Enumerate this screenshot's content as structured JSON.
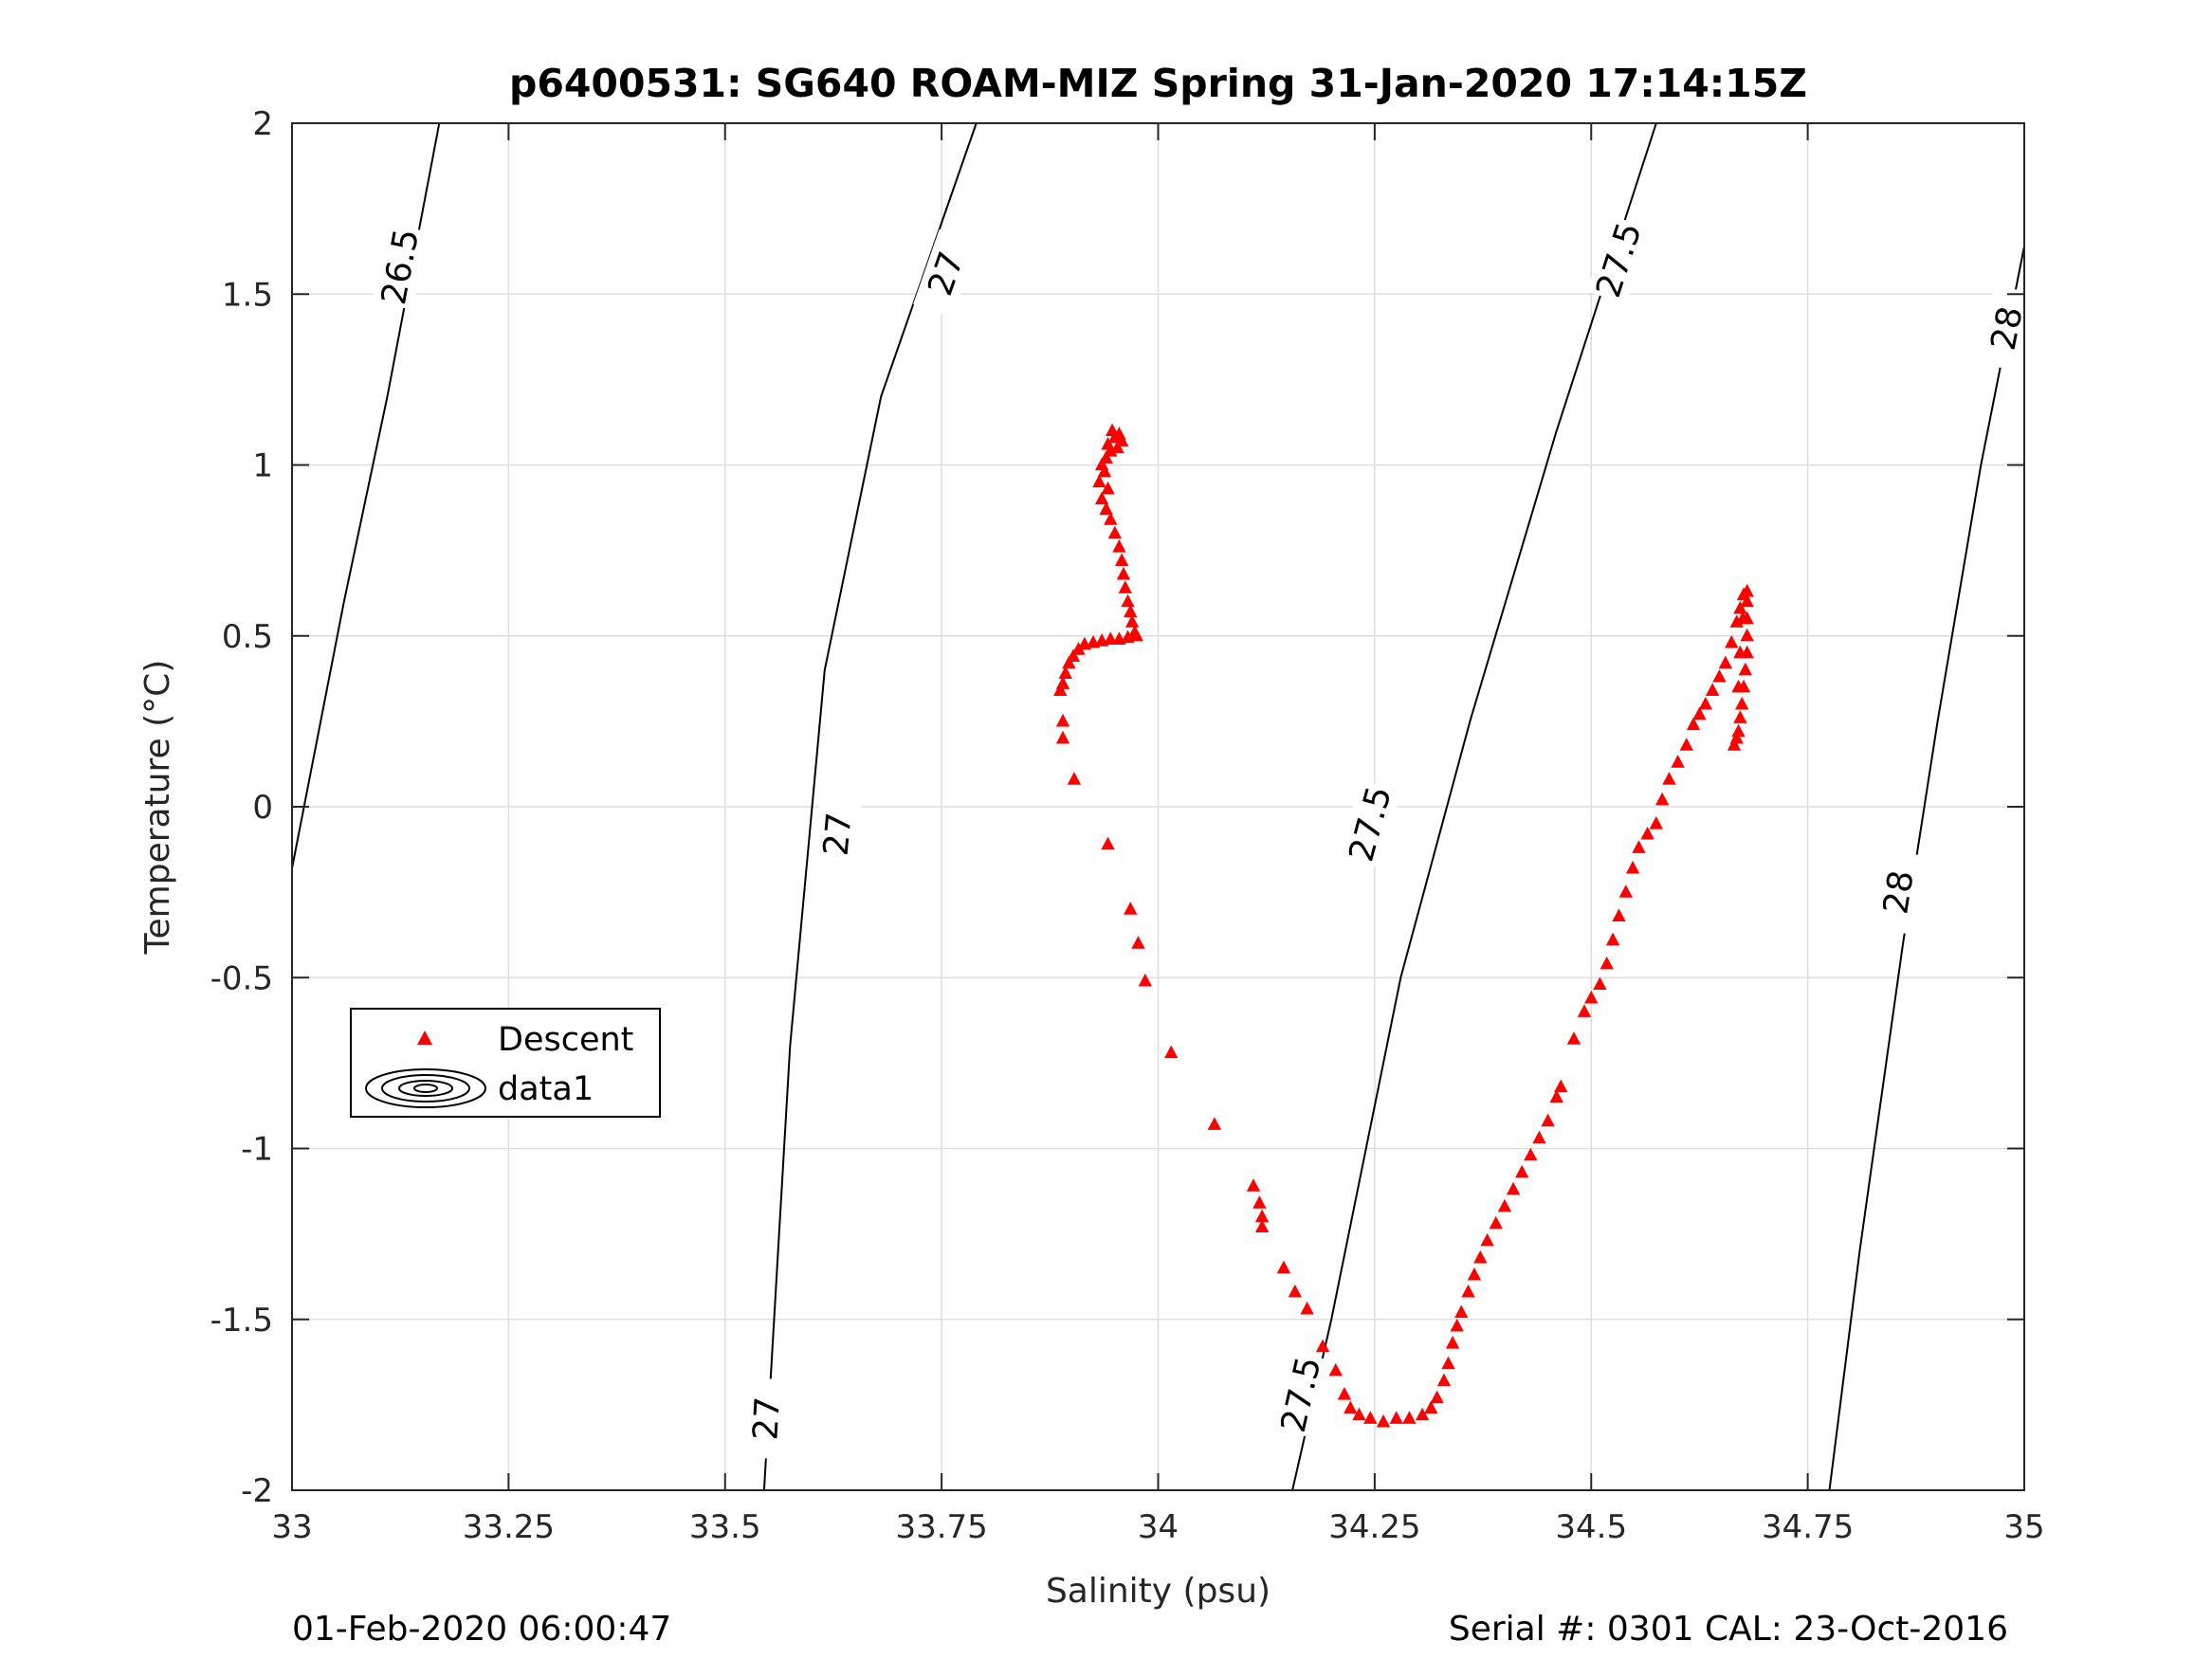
{
  "chart_data": {
    "type": "scatter",
    "title": "p6400531: SG640 ROAM-MIZ Spring 31-Jan-2020 17:14:15Z",
    "xlabel": "Salinity (psu)",
    "ylabel": "Temperature (°C)",
    "xlim": [
      33,
      35
    ],
    "ylim": [
      -2,
      2
    ],
    "x_ticks": [
      33,
      33.25,
      33.5,
      33.75,
      34,
      34.25,
      34.5,
      34.75,
      35
    ],
    "x_tick_labels": [
      "33",
      "33.25",
      "33.5",
      "33.75",
      "34",
      "34.25",
      "34.5",
      "34.75",
      "35"
    ],
    "y_ticks": [
      -2,
      -1.5,
      -1,
      -0.5,
      0,
      0.5,
      1,
      1.5,
      2
    ],
    "y_tick_labels": [
      "-2",
      "-1.5",
      "-1",
      "-0.5",
      "0",
      "0.5",
      "1",
      "1.5",
      "2"
    ],
    "grid": true,
    "legend_position": "middle-left",
    "legend": [
      {
        "name": "Descent",
        "marker": "triangle",
        "color": "#ff0000"
      },
      {
        "name": "data1",
        "marker": "contour",
        "color": "#000000"
      }
    ],
    "series": [
      {
        "name": "Descent",
        "color": "#ff0000",
        "marker": "triangle",
        "points": [
          [
            33.947,
            1.1
          ],
          [
            33.955,
            1.09
          ],
          [
            33.95,
            1.08
          ],
          [
            33.958,
            1.07
          ],
          [
            33.942,
            1.06
          ],
          [
            33.945,
            1.04
          ],
          [
            33.953,
            1.05
          ],
          [
            33.94,
            1.02
          ],
          [
            33.935,
            1.0
          ],
          [
            33.938,
            0.98
          ],
          [
            33.932,
            0.95
          ],
          [
            33.942,
            0.93
          ],
          [
            33.935,
            0.9
          ],
          [
            33.94,
            0.87
          ],
          [
            33.945,
            0.84
          ],
          [
            33.95,
            0.8
          ],
          [
            33.955,
            0.76
          ],
          [
            33.958,
            0.72
          ],
          [
            33.96,
            0.68
          ],
          [
            33.962,
            0.64
          ],
          [
            33.965,
            0.6
          ],
          [
            33.968,
            0.57
          ],
          [
            33.97,
            0.54
          ],
          [
            33.973,
            0.51
          ],
          [
            33.975,
            0.5
          ],
          [
            33.965,
            0.495
          ],
          [
            33.955,
            0.49
          ],
          [
            33.945,
            0.49
          ],
          [
            33.935,
            0.485
          ],
          [
            33.925,
            0.48
          ],
          [
            33.915,
            0.475
          ],
          [
            33.908,
            0.46
          ],
          [
            33.902,
            0.44
          ],
          [
            33.897,
            0.42
          ],
          [
            33.893,
            0.39
          ],
          [
            33.89,
            0.36
          ],
          [
            33.887,
            0.34
          ],
          [
            33.89,
            0.25
          ],
          [
            33.89,
            0.2
          ],
          [
            33.903,
            0.08
          ],
          [
            33.942,
            -0.11
          ],
          [
            33.968,
            -0.3
          ],
          [
            33.977,
            -0.4
          ],
          [
            33.985,
            -0.51
          ],
          [
            34.015,
            -0.72
          ],
          [
            34.065,
            -0.93
          ],
          [
            34.11,
            -1.11
          ],
          [
            34.117,
            -1.16
          ],
          [
            34.12,
            -1.2
          ],
          [
            34.12,
            -1.23
          ],
          [
            34.145,
            -1.35
          ],
          [
            34.158,
            -1.42
          ],
          [
            34.172,
            -1.47
          ],
          [
            34.19,
            -1.58
          ],
          [
            34.205,
            -1.65
          ],
          [
            34.215,
            -1.72
          ],
          [
            34.222,
            -1.76
          ],
          [
            34.232,
            -1.78
          ],
          [
            34.245,
            -1.79
          ],
          [
            34.26,
            -1.8
          ],
          [
            34.275,
            -1.79
          ],
          [
            34.29,
            -1.79
          ],
          [
            34.305,
            -1.78
          ],
          [
            34.315,
            -1.76
          ],
          [
            34.322,
            -1.73
          ],
          [
            34.33,
            -1.68
          ],
          [
            34.335,
            -1.63
          ],
          [
            34.34,
            -1.57
          ],
          [
            34.345,
            -1.52
          ],
          [
            34.35,
            -1.48
          ],
          [
            34.358,
            -1.42
          ],
          [
            34.365,
            -1.37
          ],
          [
            34.372,
            -1.32
          ],
          [
            34.38,
            -1.27
          ],
          [
            34.39,
            -1.22
          ],
          [
            34.4,
            -1.17
          ],
          [
            34.41,
            -1.12
          ],
          [
            34.42,
            -1.07
          ],
          [
            34.43,
            -1.02
          ],
          [
            34.44,
            -0.97
          ],
          [
            34.45,
            -0.92
          ],
          [
            34.46,
            -0.85
          ],
          [
            34.465,
            -0.82
          ],
          [
            34.48,
            -0.68
          ],
          [
            34.492,
            -0.6
          ],
          [
            34.5,
            -0.56
          ],
          [
            34.51,
            -0.52
          ],
          [
            34.518,
            -0.46
          ],
          [
            34.525,
            -0.39
          ],
          [
            34.532,
            -0.32
          ],
          [
            34.54,
            -0.25
          ],
          [
            34.548,
            -0.18
          ],
          [
            34.555,
            -0.12
          ],
          [
            34.565,
            -0.08
          ],
          [
            34.575,
            -0.05
          ],
          [
            34.582,
            0.02
          ],
          [
            34.59,
            0.08
          ],
          [
            34.6,
            0.13
          ],
          [
            34.61,
            0.18
          ],
          [
            34.618,
            0.24
          ],
          [
            34.625,
            0.27
          ],
          [
            34.632,
            0.3
          ],
          [
            34.64,
            0.34
          ],
          [
            34.648,
            0.38
          ],
          [
            34.655,
            0.42
          ],
          [
            34.662,
            0.48
          ],
          [
            34.668,
            0.54
          ],
          [
            34.672,
            0.58
          ],
          [
            34.676,
            0.62
          ],
          [
            34.68,
            0.63
          ],
          [
            34.68,
            0.6
          ],
          [
            34.68,
            0.55
          ],
          [
            34.68,
            0.5
          ],
          [
            34.68,
            0.45
          ],
          [
            34.678,
            0.4
          ],
          [
            34.676,
            0.35
          ],
          [
            34.674,
            0.3
          ],
          [
            34.672,
            0.26
          ],
          [
            34.67,
            0.22
          ],
          [
            34.668,
            0.2
          ],
          [
            34.665,
            0.18
          ],
          [
            34.67,
            0.35
          ],
          [
            34.672,
            0.45
          ],
          [
            34.675,
            0.55
          ]
        ]
      }
    ],
    "contours": [
      {
        "level": "26.5",
        "points": [
          [
            33.0,
            -0.18
          ],
          [
            33.06,
            0.6
          ],
          [
            33.11,
            1.2
          ],
          [
            33.17,
            2.0
          ]
        ],
        "labels": [
          {
            "text": "26.5",
            "x": 33.125,
            "y": 1.58
          }
        ]
      },
      {
        "level": "27",
        "points": [
          [
            33.545,
            -2.0
          ],
          [
            33.575,
            -0.7
          ],
          [
            33.615,
            0.4
          ],
          [
            33.68,
            1.2
          ],
          [
            33.79,
            2.0
          ]
        ],
        "labels": [
          {
            "text": "27",
            "x": 33.548,
            "y": -1.79
          },
          {
            "text": "27",
            "x": 33.63,
            "y": -0.08
          },
          {
            "text": "27",
            "x": 33.755,
            "y": 1.56
          }
        ]
      },
      {
        "level": "27.5",
        "points": [
          [
            34.155,
            -2.0
          ],
          [
            34.2,
            -1.5
          ],
          [
            34.28,
            -0.5
          ],
          [
            34.36,
            0.25
          ],
          [
            34.46,
            1.1
          ],
          [
            34.575,
            2.0
          ]
        ],
        "labels": [
          {
            "text": "27.5",
            "x": 34.165,
            "y": -1.72
          },
          {
            "text": "27.5",
            "x": 34.245,
            "y": -0.05
          },
          {
            "text": "27.5",
            "x": 34.532,
            "y": 1.6
          }
        ]
      },
      {
        "level": "28",
        "points": [
          [
            34.775,
            -2.0
          ],
          [
            34.81,
            -1.3
          ],
          [
            34.86,
            -0.4
          ],
          [
            34.9,
            0.25
          ],
          [
            34.95,
            1.0
          ],
          [
            35.0,
            1.64
          ]
        ],
        "labels": [
          {
            "text": "28",
            "x": 34.855,
            "y": -0.25
          },
          {
            "text": "28",
            "x": 34.98,
            "y": 1.4
          }
        ]
      }
    ]
  },
  "footer": {
    "date_text": "01-Feb-2020 06:00:47",
    "serial_text": "Serial #: 0301  CAL: 23-Oct-2016"
  }
}
